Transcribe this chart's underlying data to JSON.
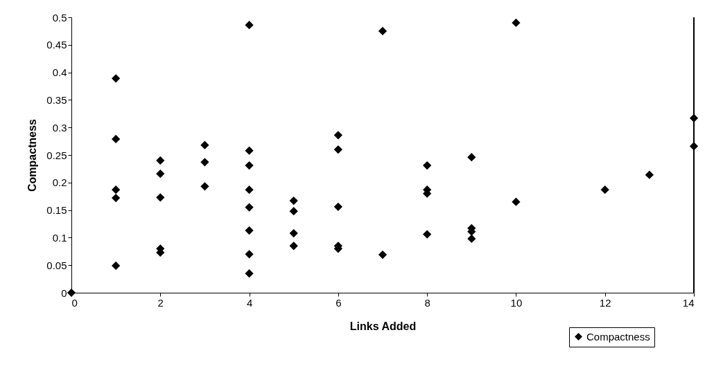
{
  "chart_data": {
    "type": "scatter",
    "xlabel": "Links Added",
    "ylabel": "Compactness",
    "x": [
      0,
      1,
      1,
      1,
      1,
      1,
      2,
      2,
      2,
      2,
      2,
      3,
      3,
      3,
      4,
      4,
      4,
      4,
      4,
      4,
      4,
      4,
      5,
      5,
      5,
      5,
      6,
      6,
      6,
      6,
      6,
      7,
      7,
      8,
      8,
      8,
      8,
      9,
      9,
      9,
      9,
      10,
      10,
      12,
      13,
      14,
      14
    ],
    "series": [
      {
        "name": "Compactness",
        "color": "#000000",
        "values": [
          0,
          0.389,
          0.279,
          0.187,
          0.172,
          0.049,
          0.24,
          0.216,
          0.173,
          0.08,
          0.073,
          0.268,
          0.237,
          0.193,
          0.486,
          0.258,
          0.231,
          0.187,
          0.155,
          0.113,
          0.07,
          0.035,
          0.167,
          0.148,
          0.108,
          0.085,
          0.286,
          0.26,
          0.156,
          0.085,
          0.08,
          0.475,
          0.069,
          0.231,
          0.187,
          0.18,
          0.106,
          0.246,
          0.117,
          0.111,
          0.098,
          0.49,
          0.165,
          0.187,
          0.214,
          0.317,
          0.266
        ]
      }
    ],
    "xlim": [
      0,
      14
    ],
    "xticks": [
      0,
      2,
      4,
      6,
      8,
      10,
      12,
      14
    ],
    "ylim": [
      0,
      0.5
    ],
    "yticks": [
      0,
      0.05,
      0.1,
      0.15,
      0.2,
      0.25,
      0.3,
      0.35,
      0.4,
      0.45,
      0.5
    ],
    "marker": "diamond",
    "grid": false,
    "legend": "bottom right"
  }
}
